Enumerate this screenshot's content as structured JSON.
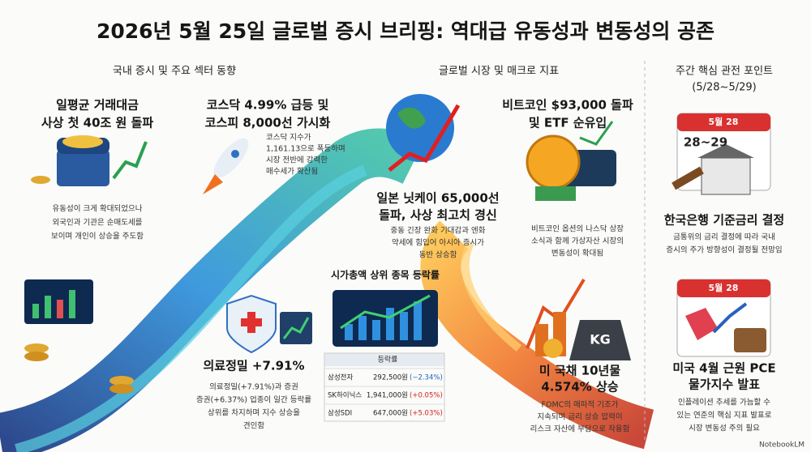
{
  "header": {
    "title": "2026년 5월 25일 글로벌 증시 브리핑: 역대급 유동성과 변동성의 공존"
  },
  "sections": [
    {
      "title_lines": [
        "국내 증시 및 주요 섹터 동향"
      ]
    },
    {
      "title_lines": [
        "글로벌 시장 및 매크로 지표"
      ]
    },
    {
      "title_lines": [
        "주간 핵심 관전 포인트",
        "(5/28~5/29)"
      ]
    }
  ],
  "cards": [
    {
      "title_lines": [
        "일평균 거래대금",
        "사상 첫 40조 원 돌파"
      ],
      "body_lines": [
        "유동성이 크게 확대되었으나",
        "외국인과 기관은 순매도세를",
        "보이며 개인이 상승을 주도함"
      ]
    },
    {
      "title_lines": [
        "코스닥 4.99% 급등 및",
        "코스피 8,000선 가시화"
      ],
      "body_lines": [
        "코스닥 지수가",
        "1,161.13으로 폭등하며",
        "시장 전반에 강력한",
        "매수세가 확산됨"
      ]
    },
    {
      "title_lines": [
        "의료정밀 +7.91%"
      ],
      "body_lines": [
        "의료정밀(+7.91%)과 증권",
        "증권(+6.37%) 업종이 일간 등락률",
        "상위를 차지하며 지수 상승을",
        "견인함"
      ]
    },
    {
      "title_lines": [
        "일본 닛케이 65,000선",
        "돌파, 사상 최고치 경신"
      ],
      "body_lines": [
        "중동 긴장 완화 기대감과 엔화",
        "약세에 힘입어 아시아 증시가",
        "동반 상승함"
      ]
    },
    {
      "title_lines": [
        "비트코인 $93,000 돌파",
        "및 ETF 순유입"
      ],
      "body_lines": [
        "비트코인 옵션의 나스닥 상장",
        "소식과 함께 가상자산 시장의",
        "변동성이 확대됨"
      ]
    },
    {
      "title_lines": [
        "미 국채 10년물",
        "4.574% 상승"
      ],
      "body_lines": [
        "FOMC의 매파적 기조가",
        "지속되며 금리 상승 압력이",
        "리스크 자산에 부담으로 작용함"
      ]
    },
    {
      "title_lines": [
        "한국은행 기준금리 결정"
      ],
      "body_lines": [
        "금통위의 금리 결정에 따라 국내",
        "증시의 주가 방향성이 결정될 전망임"
      ]
    },
    {
      "title_lines": [
        "미국 4월 근원 PCE",
        "물가지수 발표"
      ],
      "body_lines": [
        "인플레이션 추세를 가늠할 수",
        "있는 연준의 핵심 지표 발표로",
        "시장 변동성 주의 필요"
      ]
    }
  ],
  "market_cap": {
    "title": "시가총액 상위 종목 등락률",
    "column_header": "등락률",
    "rows": [
      {
        "name": "삼성전자",
        "price": "292,500원",
        "change": "(−2.34%)",
        "color": "#2060c0"
      },
      {
        "name": "SK하이닉스",
        "price": "1,941,000원",
        "change": "(+0.05%)",
        "color": "#d02020"
      },
      {
        "name": "삼성SDI",
        "price": "647,000원",
        "change": "(+5.03%)",
        "color": "#d02020"
      }
    ]
  },
  "icons": {
    "calendar_1_month": "5월 28",
    "calendar_1_days": "28~29",
    "calendar_2_month": "5월 28",
    "weight": "KG"
  },
  "footer": {
    "brand": "NotebookLM"
  }
}
